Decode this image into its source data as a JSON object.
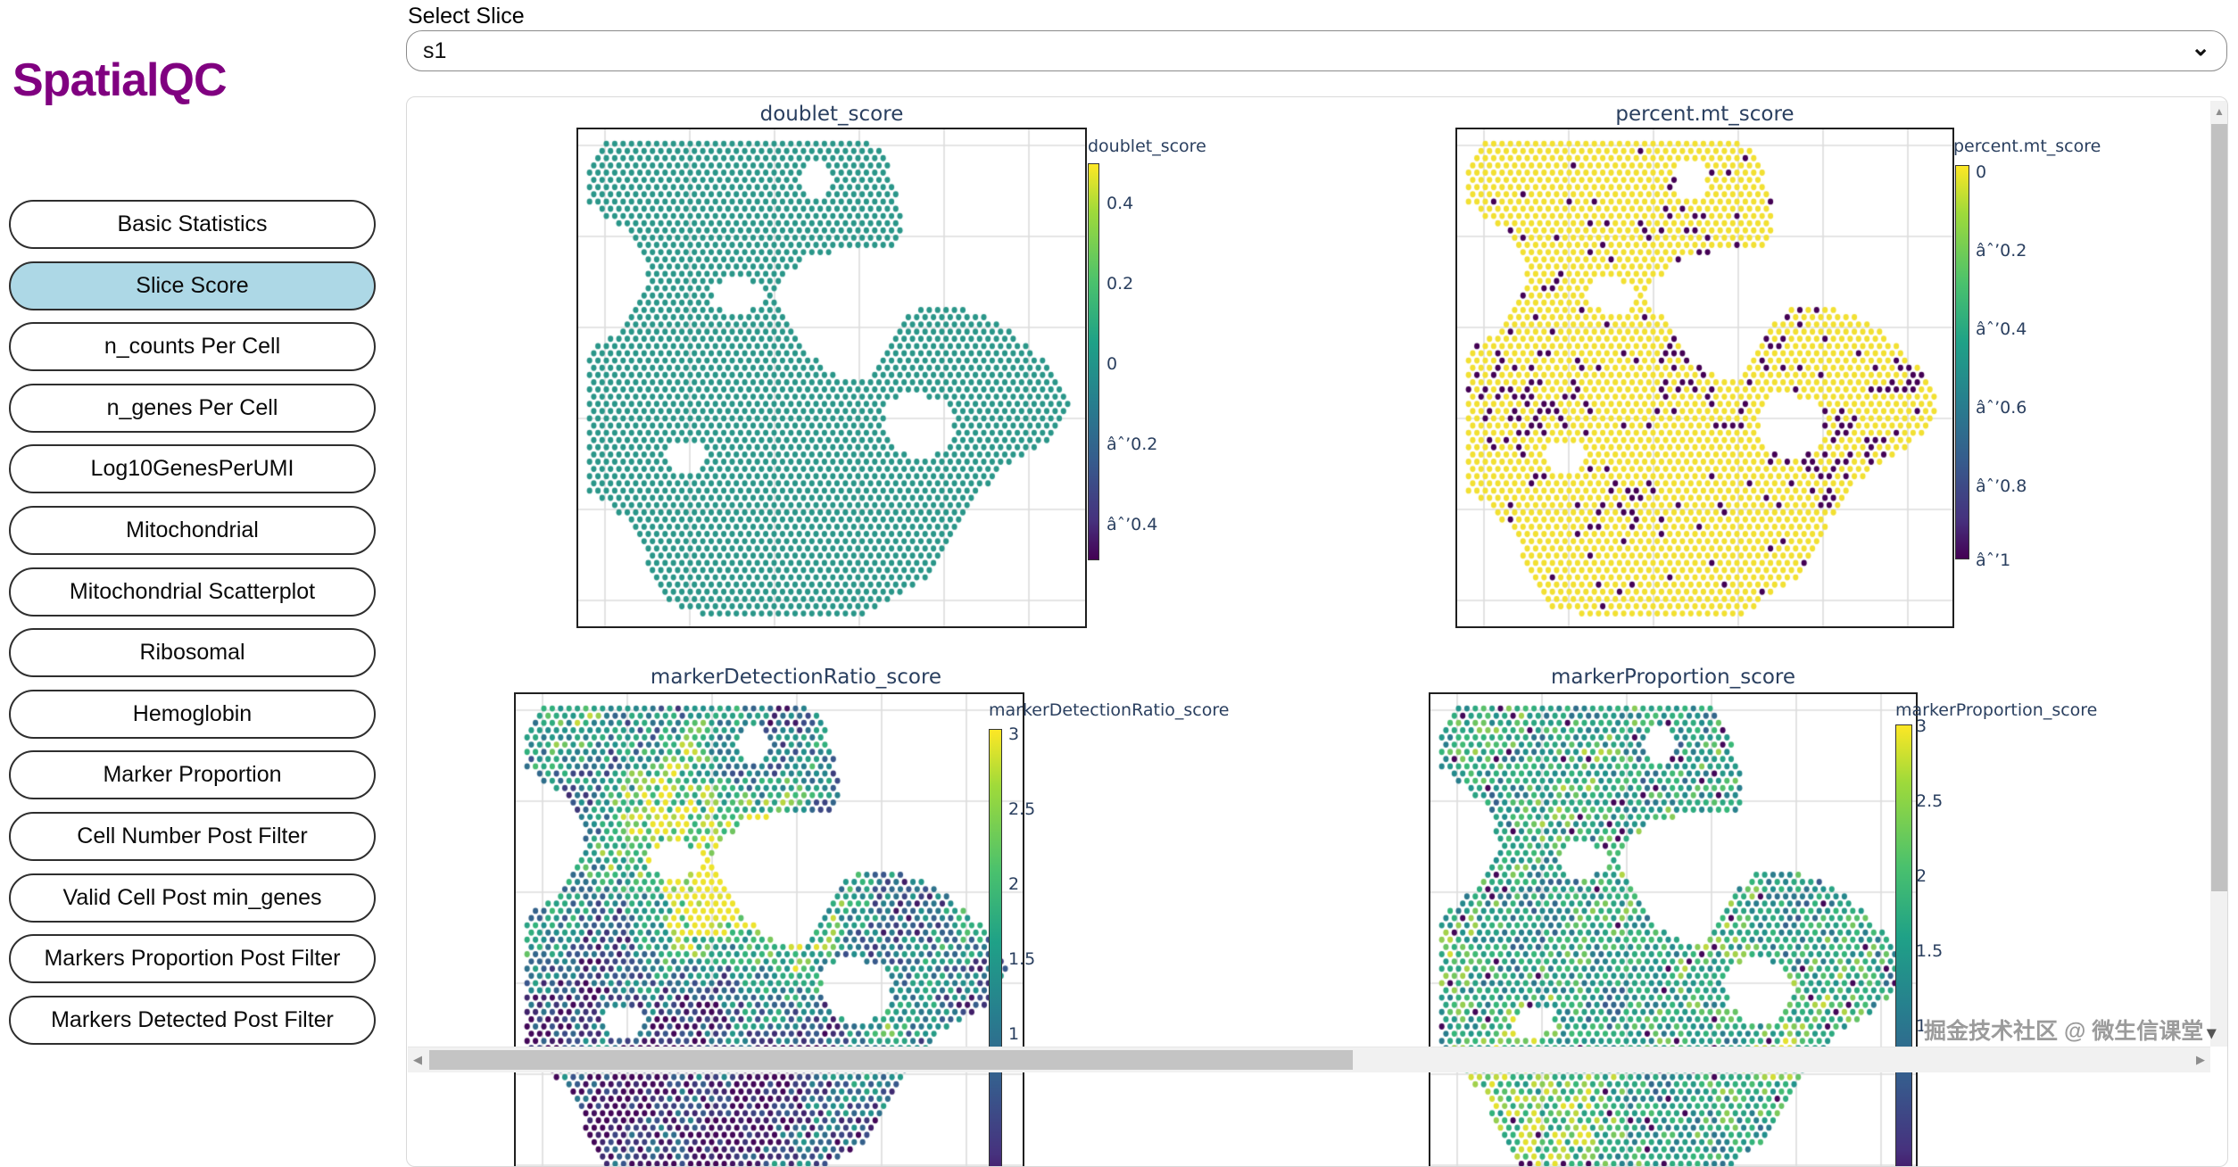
{
  "app": {
    "name": "SpatialQC"
  },
  "slice_selector": {
    "label": "Select Slice",
    "value": "s1",
    "chevron_icon": "⌄"
  },
  "sidebar": {
    "items": [
      {
        "label": "Basic Statistics",
        "active": false
      },
      {
        "label": "Slice Score",
        "active": true
      },
      {
        "label": "n_counts Per Cell",
        "active": false
      },
      {
        "label": "n_genes Per Cell",
        "active": false
      },
      {
        "label": "Log10GenesPerUMI",
        "active": false
      },
      {
        "label": "Mitochondrial",
        "active": false
      },
      {
        "label": "Mitochondrial Scatterplot",
        "active": false
      },
      {
        "label": "Ribosomal",
        "active": false
      },
      {
        "label": "Hemoglobin",
        "active": false
      },
      {
        "label": "Marker Proportion",
        "active": false
      },
      {
        "label": "Cell Number Post Filter",
        "active": false
      },
      {
        "label": "Valid Cell Post min_genes",
        "active": false
      },
      {
        "label": "Markers Proportion Post Filter",
        "active": false
      },
      {
        "label": "Markers Detected Post Filter",
        "active": false
      }
    ]
  },
  "colors": {
    "logo": "#800080",
    "active_button": "#add8e6",
    "plot_text": "#2a3f5f",
    "uniform_dot": "#2a9689",
    "score_yellow": "#f2e032",
    "score_purple": "#440154",
    "viridis_stops": [
      "#440154",
      "#3b528b",
      "#21918c",
      "#35b779",
      "#fde725"
    ]
  },
  "plots": [
    {
      "title": "doublet_score",
      "colorbar_label": "doublet_score",
      "ticks": [
        "0.4",
        "0.2",
        "0",
        "âˆ’0.2",
        "âˆ’0.4"
      ],
      "scheme": "uniform"
    },
    {
      "title": "percent.mt_score",
      "colorbar_label": "percent.mt_score",
      "ticks": [
        "0",
        "âˆ’0.2",
        "âˆ’0.4",
        "âˆ’0.6",
        "âˆ’0.8",
        "âˆ’1"
      ],
      "scheme": "yellow_purple_outliers"
    },
    {
      "title": "markerDetectionRatio_score",
      "colorbar_label": "markerDetectionRatio_score",
      "ticks": [
        "3",
        "2.5",
        "2",
        "1.5",
        "1"
      ],
      "scheme": "viridis_mixed"
    },
    {
      "title": "markerProportion_score",
      "colorbar_label": "markerProportion_score",
      "ticks": [
        "3",
        "2.5",
        "2",
        "1.5",
        "1"
      ],
      "scheme": "green_dominant_mixed"
    }
  ],
  "chart_data": [
    {
      "type": "scatter",
      "subtype": "spatial-dot-map",
      "title": "doublet_score",
      "colorbar_label": "doublet_score",
      "colorbar_ticks": [
        0.4,
        0.2,
        0,
        -0.2,
        -0.4
      ],
      "colorbar_range_top_to_bottom": [
        0.5,
        -0.5
      ],
      "palette": "viridis",
      "observed_values": "all spots near 0 (uniform teal color)"
    },
    {
      "type": "scatter",
      "subtype": "spatial-dot-map",
      "title": "percent.mt_score",
      "colorbar_label": "percent.mt_score",
      "colorbar_ticks": [
        0,
        -0.2,
        -0.4,
        -0.6,
        -0.8,
        -1
      ],
      "colorbar_range_top_to_bottom": [
        0,
        -1
      ],
      "palette": "viridis",
      "observed_values": "majority of spots at 0 (yellow), scattered outlier spots near -1 (dark purple)"
    },
    {
      "type": "scatter",
      "subtype": "spatial-dot-map",
      "title": "markerDetectionRatio_score",
      "colorbar_label": "markerDetectionRatio_score",
      "colorbar_ticks": [
        3,
        2.5,
        2,
        1.5,
        1
      ],
      "palette": "viridis",
      "observed_values": "full mix of values; low (purple) region bottom-left, high (yellow) cluster upper-middle-left"
    },
    {
      "type": "scatter",
      "subtype": "spatial-dot-map",
      "title": "markerProportion_score",
      "colorbar_label": "markerProportion_score",
      "colorbar_ticks": [
        3,
        2.5,
        2,
        1.5,
        1
      ],
      "palette": "viridis",
      "observed_values": "mid-high values dominate (green/teal) with yellow patches, sparse purple outliers"
    }
  ],
  "watermark": {
    "text": "掘金技术社区 @ 微生信课堂",
    "dropdown_icon": "▾"
  },
  "scrollbar": {
    "up_icon": "▲",
    "left_icon": "◀",
    "right_icon": "▶"
  }
}
